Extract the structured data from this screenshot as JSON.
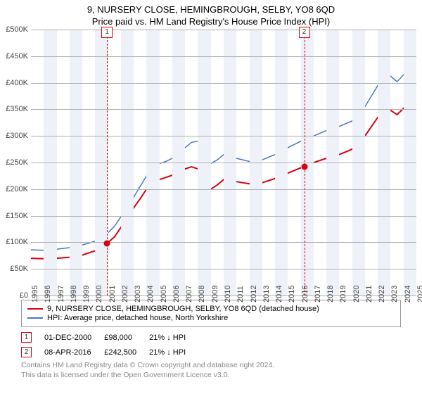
{
  "title": "9, NURSERY CLOSE, HEMINGBROUGH, SELBY, YO8 6QD",
  "subtitle": "Price paid vs. HM Land Registry's House Price Index (HPI)",
  "colors": {
    "series_prop": "#d9000f",
    "series_hpi": "#4a75c4",
    "band": "#eef2f8",
    "grid": "#aeb0b2",
    "text": "#444444",
    "foot": "#888888",
    "border": "#999999"
  },
  "y_axis": {
    "min": 0,
    "max": 500000,
    "ticks": [
      0,
      50000,
      100000,
      150000,
      200000,
      250000,
      300000,
      350000,
      400000,
      450000,
      500000
    ],
    "labels": [
      "£0",
      "£50K",
      "£100K",
      "£150K",
      "£200K",
      "£250K",
      "£300K",
      "£350K",
      "£400K",
      "£450K",
      "£500K"
    ],
    "label_fontsize": 11
  },
  "x_axis": {
    "min": 1995,
    "max": 2025,
    "ticks": [
      1995,
      1996,
      1997,
      1998,
      1999,
      2000,
      2001,
      2002,
      2003,
      2004,
      2005,
      2006,
      2007,
      2008,
      2009,
      2010,
      2011,
      2012,
      2013,
      2014,
      2015,
      2016,
      2017,
      2018,
      2019,
      2020,
      2021,
      2022,
      2023,
      2024,
      2025
    ],
    "label_fontsize": 11,
    "band_color": "#eef2f8"
  },
  "markers": [
    {
      "id": "1",
      "year": 2000.92,
      "color": "#d9000f"
    },
    {
      "id": "2",
      "year": 2016.27,
      "color": "#d9000f"
    }
  ],
  "sale_points": [
    {
      "year": 2000.92,
      "price": 98000,
      "color": "#d9000f"
    },
    {
      "year": 2016.27,
      "price": 242500,
      "color": "#d9000f"
    }
  ],
  "series": [
    {
      "name": "prop",
      "color": "#d9000f",
      "width": 2,
      "points": [
        [
          1995,
          70000
        ],
        [
          1996,
          69000
        ],
        [
          1997,
          70000
        ],
        [
          1998,
          72000
        ],
        [
          1999,
          76000
        ],
        [
          2000,
          84000
        ],
        [
          2000.92,
          98000
        ],
        [
          2001.5,
          110000
        ],
        [
          2002,
          128000
        ],
        [
          2002.5,
          145000
        ],
        [
          2003,
          165000
        ],
        [
          2003.5,
          182000
        ],
        [
          2004,
          200000
        ],
        [
          2004.5,
          212000
        ],
        [
          2005,
          218000
        ],
        [
          2005.5,
          222000
        ],
        [
          2006,
          226000
        ],
        [
          2006.5,
          232000
        ],
        [
          2007,
          238000
        ],
        [
          2007.5,
          242000
        ],
        [
          2008,
          238000
        ],
        [
          2008.5,
          222000
        ],
        [
          2009,
          200000
        ],
        [
          2009.5,
          208000
        ],
        [
          2010,
          218000
        ],
        [
          2010.5,
          216000
        ],
        [
          2011,
          214000
        ],
        [
          2012,
          210000
        ],
        [
          2013,
          212000
        ],
        [
          2014,
          220000
        ],
        [
          2015,
          230000
        ],
        [
          2016,
          240000
        ],
        [
          2016.27,
          242500
        ],
        [
          2017,
          250000
        ],
        [
          2018,
          258000
        ],
        [
          2019,
          265000
        ],
        [
          2020,
          275000
        ],
        [
          2021,
          300000
        ],
        [
          2022,
          335000
        ],
        [
          2022.5,
          350000
        ],
        [
          2023,
          348000
        ],
        [
          2023.5,
          340000
        ],
        [
          2024,
          352000
        ],
        [
          2024.5,
          360000
        ],
        [
          2025,
          358000
        ]
      ]
    },
    {
      "name": "hpi",
      "color": "#4a75c4",
      "width": 1.5,
      "points": [
        [
          1995,
          86000
        ],
        [
          1996,
          85000
        ],
        [
          1997,
          87000
        ],
        [
          1998,
          90000
        ],
        [
          1999,
          95000
        ],
        [
          2000,
          102000
        ],
        [
          2000.5,
          108000
        ],
        [
          2001,
          118000
        ],
        [
          2001.5,
          130000
        ],
        [
          2002,
          148000
        ],
        [
          2002.5,
          165000
        ],
        [
          2003,
          185000
        ],
        [
          2003.5,
          205000
        ],
        [
          2004,
          225000
        ],
        [
          2004.5,
          240000
        ],
        [
          2005,
          248000
        ],
        [
          2005.5,
          252000
        ],
        [
          2006,
          258000
        ],
        [
          2006.5,
          268000
        ],
        [
          2007,
          278000
        ],
        [
          2007.5,
          288000
        ],
        [
          2008,
          290000
        ],
        [
          2008.5,
          272000
        ],
        [
          2009,
          248000
        ],
        [
          2009.5,
          255000
        ],
        [
          2010,
          265000
        ],
        [
          2010.5,
          262000
        ],
        [
          2011,
          258000
        ],
        [
          2012,
          252000
        ],
        [
          2013,
          255000
        ],
        [
          2014,
          265000
        ],
        [
          2015,
          278000
        ],
        [
          2016,
          290000
        ],
        [
          2017,
          300000
        ],
        [
          2018,
          310000
        ],
        [
          2019,
          318000
        ],
        [
          2020,
          328000
        ],
        [
          2021,
          355000
        ],
        [
          2022,
          395000
        ],
        [
          2022.5,
          415000
        ],
        [
          2023,
          412000
        ],
        [
          2023.5,
          402000
        ],
        [
          2024,
          415000
        ],
        [
          2024.5,
          425000
        ],
        [
          2025,
          420000
        ]
      ]
    }
  ],
  "legend": [
    {
      "color": "#d9000f",
      "label": "9, NURSERY CLOSE, HEMINGBROUGH, SELBY, YO8 6QD (detached house)"
    },
    {
      "color": "#4a75c4",
      "label": "HPI: Average price, detached house, North Yorkshire"
    }
  ],
  "sales": [
    {
      "n": "1",
      "color": "#d9000f",
      "date": "01-DEC-2000",
      "price": "£98,000",
      "delta": "21% ↓ HPI"
    },
    {
      "n": "2",
      "color": "#d9000f",
      "date": "08-APR-2016",
      "price": "£242,500",
      "delta": "21% ↓ HPI"
    }
  ],
  "footer1": "Contains HM Land Registry data © Crown copyright and database right 2024.",
  "footer2": "This data is licensed under the Open Government Licence v3.0."
}
